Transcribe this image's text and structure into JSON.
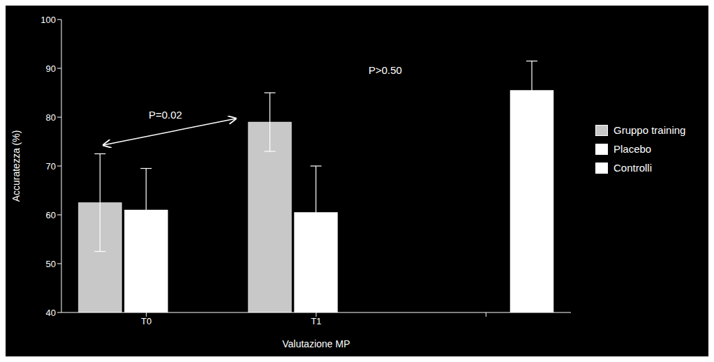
{
  "chart_data": {
    "type": "bar",
    "categories": [
      "T0",
      "T1",
      null
    ],
    "xlabel": "Valutazione MP",
    "ylabel": "Accuratezza (%)",
    "series": [
      {
        "name": "Gruppo training",
        "color": "#c8c8c8",
        "values": [
          62.5,
          79.0,
          null
        ],
        "errors": [
          10.0,
          6.0,
          null
        ]
      },
      {
        "name": "Placebo",
        "color": "#ffffff",
        "values": [
          61.0,
          60.5,
          null
        ],
        "errors": [
          8.5,
          9.5,
          null
        ]
      },
      {
        "name": "Controlli",
        "color": "#ffffff",
        "values": [
          null,
          null,
          85.5
        ],
        "errors": [
          null,
          null,
          6.0
        ]
      }
    ],
    "ylim": [
      40,
      100
    ],
    "yticks": [
      40,
      50,
      60,
      70,
      80,
      90,
      100
    ],
    "grid": false,
    "legend": "right",
    "annotations": [
      {
        "text": "P=0.02"
      },
      {
        "text": "P>0.50"
      }
    ]
  }
}
